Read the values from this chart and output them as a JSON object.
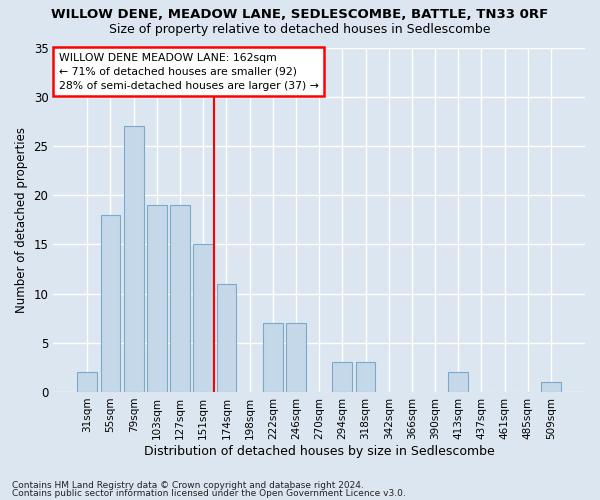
{
  "title": "WILLOW DENE, MEADOW LANE, SEDLESCOMBE, BATTLE, TN33 0RF",
  "subtitle": "Size of property relative to detached houses in Sedlescombe",
  "xlabel": "Distribution of detached houses by size in Sedlescombe",
  "ylabel": "Number of detached properties",
  "categories": [
    "31sqm",
    "55sqm",
    "79sqm",
    "103sqm",
    "127sqm",
    "151sqm",
    "174sqm",
    "198sqm",
    "222sqm",
    "246sqm",
    "270sqm",
    "294sqm",
    "318sqm",
    "342sqm",
    "366sqm",
    "390sqm",
    "413sqm",
    "437sqm",
    "461sqm",
    "485sqm",
    "509sqm"
  ],
  "values": [
    2,
    18,
    27,
    19,
    19,
    15,
    11,
    0,
    7,
    7,
    0,
    3,
    3,
    0,
    0,
    0,
    2,
    0,
    0,
    0,
    1
  ],
  "bar_color": "#c5d8ea",
  "bar_edge_color": "#7aaac8",
  "background_color": "#dce6f0",
  "plot_bg_color": "#dce6f0",
  "grid_color": "#ffffff",
  "red_line_x": 5.48,
  "ann_line1": "WILLOW DENE MEADOW LANE: 162sqm",
  "ann_line2": "← 71% of detached houses are smaller (92)",
  "ann_line3": "28% of semi-detached houses are larger (37) →",
  "footnote1": "Contains HM Land Registry data © Crown copyright and database right 2024.",
  "footnote2": "Contains public sector information licensed under the Open Government Licence v3.0.",
  "ylim": [
    0,
    35
  ],
  "yticks": [
    0,
    5,
    10,
    15,
    20,
    25,
    30,
    35
  ]
}
